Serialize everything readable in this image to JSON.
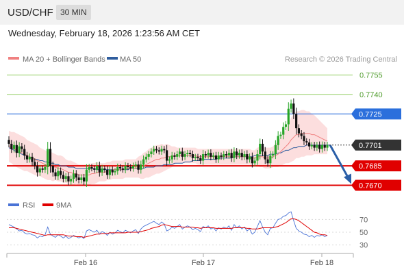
{
  "header": {
    "symbol": "USD/CHF",
    "interval": "30 MIN",
    "datetime": "Wednesday, February 18, 2026 1:23:56 AM CET"
  },
  "legend": {
    "ma20": "MA 20 + Bollinger Bands",
    "ma50": "MA 50",
    "credit": "Research © 2026 Trading Central",
    "rsi": "RSI",
    "ma9": "9MA"
  },
  "colors": {
    "ma20": "#f08080",
    "ma50": "#2f5d9e",
    "band": "#fbd8d8",
    "resistance": "#a6d67f",
    "pivot": "#2b6fdc",
    "support": "#e00000",
    "arrow": "#2b5fa8",
    "rsi": "#4a73d6",
    "rsi_ma": "#e00000"
  },
  "chart_data": [
    {
      "type": "candlestick",
      "x_ticks": [
        "Feb 16",
        "Feb 17",
        "Feb 18"
      ],
      "y_range": [
        0.7665,
        0.776
      ],
      "levels": [
        {
          "label": "0.7755",
          "value": 0.7755,
          "kind": "resistance"
        },
        {
          "label": "0.7740",
          "value": 0.774,
          "kind": "resistance"
        },
        {
          "label": "0.7725",
          "value": 0.7725,
          "kind": "pivot"
        },
        {
          "label": "0.7701",
          "value": 0.7701,
          "kind": "last"
        },
        {
          "label": "0.7685",
          "value": 0.7685,
          "kind": "support"
        },
        {
          "label": "0.7670",
          "value": 0.767,
          "kind": "support"
        }
      ],
      "close": [
        0.7702,
        0.7698,
        0.7701,
        0.7695,
        0.77,
        0.7698,
        0.7693,
        0.769,
        0.7692,
        0.7688,
        0.7685,
        0.768,
        0.7683,
        0.7682,
        0.7684,
        0.7698,
        0.7685,
        0.768,
        0.7677,
        0.7681,
        0.7678,
        0.7675,
        0.7677,
        0.7673,
        0.7675,
        0.7679,
        0.7676,
        0.7674,
        0.7676,
        0.7673,
        0.7682,
        0.7684,
        0.7683,
        0.7682,
        0.7685,
        0.768,
        0.7683,
        0.7682,
        0.7678,
        0.7682,
        0.768,
        0.7681,
        0.7684,
        0.7683,
        0.7682,
        0.7685,
        0.7684,
        0.7683,
        0.7685,
        0.7686,
        0.7682,
        0.7686,
        0.769,
        0.7692,
        0.7694,
        0.7696,
        0.7698,
        0.7697,
        0.7696,
        0.7698,
        0.7697,
        0.7689,
        0.769,
        0.7693,
        0.7692,
        0.7694,
        0.7696,
        0.7692,
        0.7694,
        0.7695,
        0.7694,
        0.7691,
        0.7692,
        0.7691,
        0.7689,
        0.7694,
        0.7693,
        0.7695,
        0.7692,
        0.7693,
        0.769,
        0.7693,
        0.7692,
        0.7694,
        0.7693,
        0.7695,
        0.7691,
        0.7696,
        0.7693,
        0.7695,
        0.7692,
        0.7694,
        0.769,
        0.7692,
        0.7687,
        0.7689,
        0.7694,
        0.7702,
        0.7696,
        0.769,
        0.7687,
        0.7693,
        0.7694,
        0.7701,
        0.7708,
        0.7709,
        0.7715,
        0.7717,
        0.7729,
        0.7733,
        0.7725,
        0.7714,
        0.771,
        0.7708,
        0.7704,
        0.7703,
        0.77,
        0.7701,
        0.7699,
        0.7701,
        0.7698,
        0.7701,
        0.7699,
        0.7701
      ],
      "ma20": [
        0.77,
        0.7699,
        0.7698,
        0.7697,
        0.7696,
        0.7695,
        0.7694,
        0.7693,
        0.7692,
        0.7691,
        0.769,
        0.7689,
        0.7688,
        0.7687,
        0.7686,
        0.7685,
        0.7685,
        0.7684,
        0.7684,
        0.7683,
        0.7683,
        0.7682,
        0.7681,
        0.768,
        0.768,
        0.7679,
        0.7679,
        0.7678,
        0.7678,
        0.7678,
        0.7678,
        0.7678,
        0.7679,
        0.7679,
        0.768,
        0.768,
        0.768,
        0.768,
        0.7681,
        0.7681,
        0.7682,
        0.7682,
        0.7682,
        0.7682,
        0.7682,
        0.7683,
        0.7683,
        0.7683,
        0.7683,
        0.7683,
        0.7684,
        0.7684,
        0.7685,
        0.7686,
        0.7687,
        0.7688,
        0.7689,
        0.769,
        0.769,
        0.7691,
        0.7691,
        0.7692,
        0.7692,
        0.7692,
        0.7693,
        0.7693,
        0.7693,
        0.7693,
        0.7693,
        0.7693,
        0.7693,
        0.7693,
        0.7693,
        0.7692,
        0.7692,
        0.7692,
        0.7692,
        0.7692,
        0.7692,
        0.7692,
        0.7692,
        0.7692,
        0.7692,
        0.7692,
        0.7692,
        0.7692,
        0.7692,
        0.7692,
        0.7692,
        0.7692,
        0.7692,
        0.7692,
        0.7692,
        0.7692,
        0.7691,
        0.7691,
        0.7692,
        0.7692,
        0.7692,
        0.7691,
        0.7691,
        0.7691,
        0.7692,
        0.7693,
        0.7694,
        0.7696,
        0.7698,
        0.77,
        0.7702,
        0.7705,
        0.7707,
        0.7709,
        0.7709,
        0.771,
        0.771,
        0.771,
        0.771,
        0.7709,
        0.7709,
        0.7708,
        0.7707,
        0.7706,
        0.7705,
        0.7704
      ],
      "ma50": [
        0.7699,
        0.7698,
        0.7697,
        0.7696,
        0.7695,
        0.7694,
        0.7693,
        0.7693,
        0.7692,
        0.7691,
        0.769,
        0.769,
        0.7689,
        0.7689,
        0.7688,
        0.7688,
        0.7687,
        0.7687,
        0.7686,
        0.7686,
        0.7685,
        0.7685,
        0.7685,
        0.7684,
        0.7684,
        0.7684,
        0.7683,
        0.7683,
        0.7683,
        0.7683,
        0.7683,
        0.7683,
        0.7683,
        0.7683,
        0.7682,
        0.7682,
        0.7682,
        0.7682,
        0.7682,
        0.7682,
        0.7682,
        0.7682,
        0.7682,
        0.7682,
        0.7682,
        0.7682,
        0.7682,
        0.7683,
        0.7683,
        0.7683,
        0.7683,
        0.7683,
        0.7683,
        0.7684,
        0.7684,
        0.7684,
        0.7684,
        0.7685,
        0.7685,
        0.7685,
        0.7686,
        0.7686,
        0.7686,
        0.7686,
        0.7687,
        0.7687,
        0.7687,
        0.7687,
        0.7688,
        0.7688,
        0.7688,
        0.7689,
        0.7689,
        0.7689,
        0.7689,
        0.769,
        0.769,
        0.769,
        0.769,
        0.769,
        0.769,
        0.7691,
        0.7691,
        0.7691,
        0.7691,
        0.7691,
        0.7691,
        0.7692,
        0.7692,
        0.7692,
        0.7692,
        0.7692,
        0.7692,
        0.7692,
        0.7692,
        0.7693,
        0.7693,
        0.7693,
        0.7693,
        0.7693,
        0.7693,
        0.7694,
        0.7694,
        0.7694,
        0.7695,
        0.7695,
        0.7696,
        0.7697,
        0.7697,
        0.7698,
        0.7699,
        0.7699,
        0.77,
        0.77,
        0.77,
        0.7701,
        0.7701,
        0.7701,
        0.7701,
        0.7701,
        0.7701,
        0.7701,
        0.7701,
        0.7701,
        0.7701
      ],
      "band_width": [
        0.0012,
        0.0012,
        0.0013,
        0.0013,
        0.0013,
        0.0013,
        0.0013,
        0.0012,
        0.0012,
        0.0012,
        0.0012,
        0.0012,
        0.0011,
        0.0011,
        0.0011,
        0.0011,
        0.0011,
        0.0011,
        0.001,
        0.001,
        0.001,
        0.001,
        0.0009,
        0.0009,
        0.0009,
        0.0009,
        0.0008,
        0.0008,
        0.0008,
        0.0008,
        0.0008,
        0.0008,
        0.0008,
        0.0008,
        0.0008,
        0.0007,
        0.0007,
        0.0007,
        0.0007,
        0.0007,
        0.0007,
        0.0007,
        0.0007,
        0.0007,
        0.0007,
        0.0007,
        0.0007,
        0.0007,
        0.0007,
        0.0007,
        0.0008,
        0.0009,
        0.001,
        0.001,
        0.0011,
        0.0011,
        0.0011,
        0.0011,
        0.0011,
        0.0011,
        0.001,
        0.001,
        0.0009,
        0.0008,
        0.0007,
        0.0006,
        0.0006,
        0.0006,
        0.0006,
        0.0006,
        0.0006,
        0.0006,
        0.0006,
        0.0006,
        0.0006,
        0.0006,
        0.0006,
        0.0006,
        0.0006,
        0.0006,
        0.0006,
        0.0006,
        0.0006,
        0.0006,
        0.0006,
        0.0006,
        0.0006,
        0.0006,
        0.0006,
        0.0006,
        0.0006,
        0.0006,
        0.0006,
        0.0006,
        0.0006,
        0.0006,
        0.0007,
        0.0008,
        0.0008,
        0.0008,
        0.0008,
        0.0008,
        0.0008,
        0.0009,
        0.001,
        0.0011,
        0.0012,
        0.0013,
        0.0015,
        0.0017,
        0.0018,
        0.0018,
        0.0018,
        0.0018,
        0.0018,
        0.0017,
        0.0017,
        0.0016,
        0.0015,
        0.0014,
        0.0013,
        0.0012,
        0.0011,
        0.001
      ]
    },
    {
      "type": "line",
      "y_ticks": [
        70,
        50,
        30
      ],
      "y_range": [
        20,
        80
      ],
      "rsi": [
        62,
        60,
        58,
        55,
        52,
        53,
        49,
        47,
        48,
        46,
        45,
        41,
        44,
        43,
        46,
        58,
        47,
        44,
        42,
        46,
        44,
        41,
        44,
        40,
        42,
        45,
        43,
        41,
        43,
        40,
        52,
        54,
        52,
        50,
        53,
        47,
        51,
        49,
        45,
        50,
        47,
        49,
        53,
        51,
        49,
        53,
        51,
        49,
        52,
        54,
        48,
        55,
        59,
        61,
        63,
        65,
        67,
        64,
        62,
        66,
        63,
        52,
        54,
        58,
        56,
        59,
        62,
        55,
        58,
        60,
        58,
        54,
        56,
        54,
        51,
        59,
        57,
        60,
        55,
        57,
        52,
        57,
        55,
        58,
        56,
        60,
        53,
        62,
        57,
        60,
        55,
        58,
        52,
        55,
        47,
        50,
        59,
        68,
        58,
        50,
        46,
        56,
        57,
        64,
        70,
        71,
        75,
        76,
        80,
        82,
        68,
        56,
        52,
        50,
        47,
        46,
        43,
        45,
        42,
        45,
        44,
        46,
        43,
        45
      ],
      "ma9": [
        57,
        57,
        57,
        56,
        55,
        54,
        53,
        52,
        51,
        50,
        49,
        48,
        47,
        46,
        45,
        46,
        46,
        46,
        46,
        46,
        46,
        46,
        45,
        44,
        44,
        44,
        43,
        43,
        43,
        42,
        43,
        44,
        45,
        46,
        47,
        47,
        48,
        48,
        48,
        49,
        49,
        49,
        49,
        49,
        49,
        49,
        50,
        50,
        50,
        50,
        50,
        51,
        52,
        53,
        54,
        56,
        57,
        58,
        59,
        61,
        62,
        61,
        60,
        59,
        59,
        59,
        59,
        58,
        58,
        58,
        58,
        58,
        57,
        57,
        56,
        57,
        57,
        57,
        57,
        57,
        56,
        56,
        56,
        56,
        56,
        56,
        56,
        57,
        57,
        57,
        57,
        57,
        56,
        56,
        55,
        55,
        55,
        56,
        57,
        57,
        57,
        57,
        57,
        58,
        59,
        61,
        63,
        65,
        68,
        71,
        71,
        70,
        68,
        65,
        62,
        59,
        56,
        53,
        50,
        49,
        47,
        46,
        46,
        45
      ]
    }
  ]
}
